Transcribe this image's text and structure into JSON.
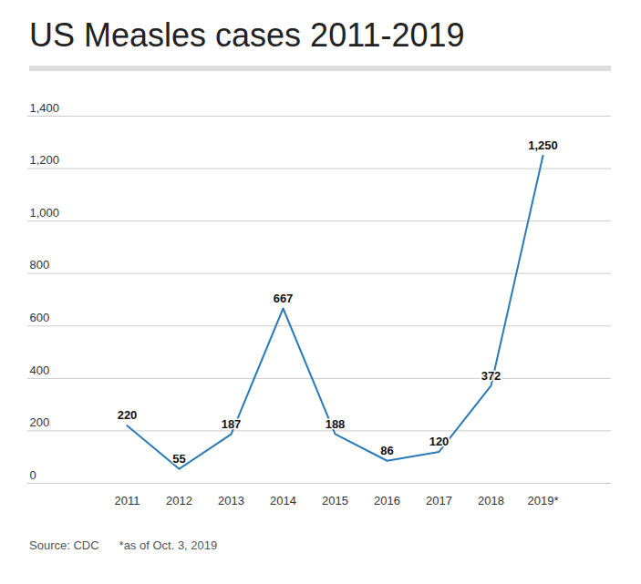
{
  "chart_data": {
    "type": "line",
    "title": "US Measles cases 2011-2019",
    "categories": [
      "2011",
      "2012",
      "2013",
      "2014",
      "2015",
      "2016",
      "2017",
      "2018",
      "2019*"
    ],
    "values": [
      220,
      55,
      187,
      667,
      188,
      86,
      120,
      372,
      1250
    ],
    "value_labels": [
      "220",
      "55",
      "187",
      "667",
      "188",
      "86",
      "120",
      "372",
      "1,250"
    ],
    "color": "#2b7bba",
    "ylim": [
      0,
      1400
    ],
    "yticks": [
      0,
      200,
      400,
      600,
      800,
      {
        "value": 1000,
        "label": "1,000"
      },
      {
        "value": 1200,
        "label": "1,200"
      },
      {
        "value": 1400,
        "label": "1,400"
      }
    ],
    "grid": true,
    "data_labels": true,
    "source": "Source: CDC",
    "note": "*as of Oct. 3, 2019"
  }
}
